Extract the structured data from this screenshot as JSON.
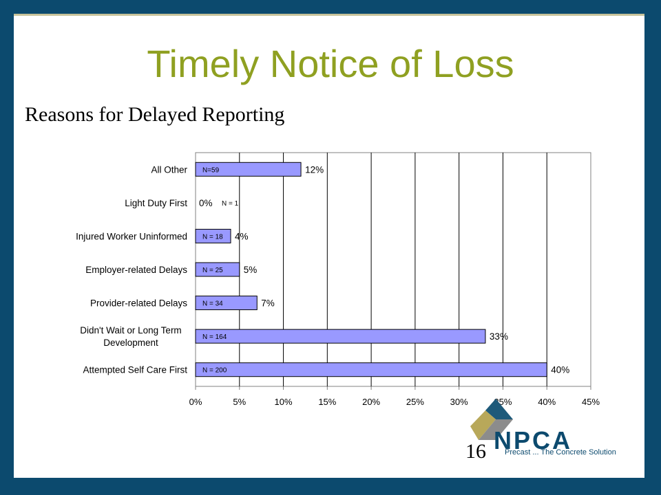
{
  "slide": {
    "title": "Timely Notice of Loss",
    "subtitle": "Reasons for Delayed Reporting",
    "page_number": "16",
    "logo": {
      "name": "NPCA",
      "tagline": "Precast ... The Concrete Solution",
      "icon": "npca-logo-icon"
    }
  },
  "colors": {
    "bar_fill": "#9999ff",
    "title": "#8fa021",
    "frame": "#0c4a6e"
  },
  "chart_data": {
    "type": "bar",
    "orientation": "horizontal",
    "categories": [
      "All Other",
      "Light Duty First",
      "Injured Worker Uninformed",
      "Employer-related Delays",
      "Provider-related Delays",
      "Didn't Wait or Long Term Development",
      "Attempted Self Care First"
    ],
    "values": [
      12,
      0,
      4,
      5,
      7,
      33,
      40
    ],
    "value_labels": [
      "12%",
      "0%",
      "4%",
      "5%",
      "7%",
      "33%",
      "40%"
    ],
    "n_labels": [
      "N=59",
      "N = 1",
      "N = 18",
      "N = 25",
      "N = 34",
      "N = 164",
      "N = 200"
    ],
    "xlim": [
      0,
      45
    ],
    "xticks": [
      "0%",
      "5%",
      "10%",
      "15%",
      "20%",
      "25%",
      "30%",
      "35%",
      "40%",
      "45%"
    ],
    "grid": true,
    "legend": "none"
  }
}
